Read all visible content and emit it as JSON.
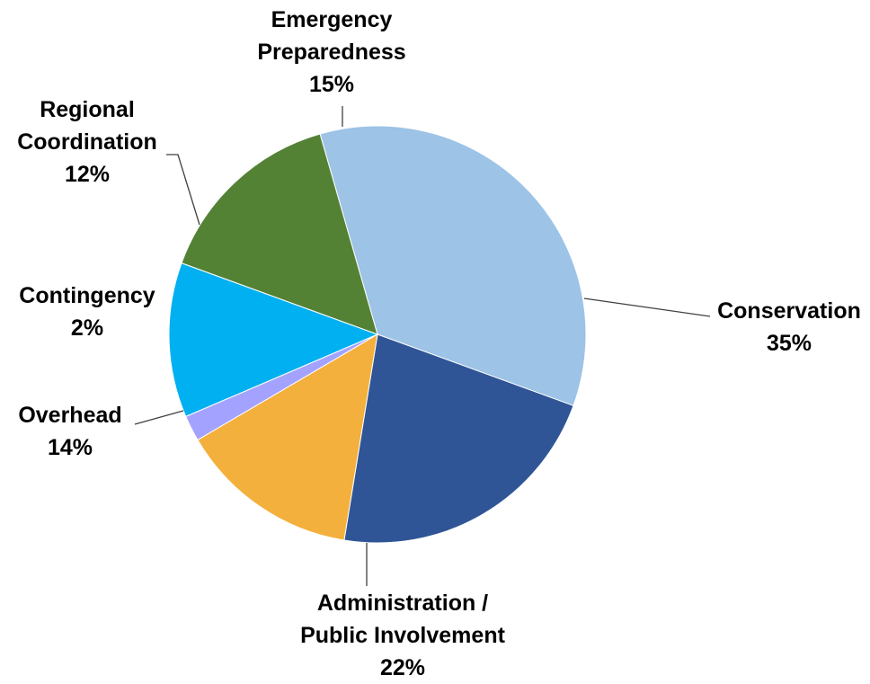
{
  "chart_data": {
    "type": "pie",
    "start_angle_deg": -16,
    "direction": "clockwise",
    "slices": [
      {
        "name": "Conservation",
        "label_lines": [
          "Conservation"
        ],
        "pct_label": "35%",
        "value": 35,
        "color": "#9DC3E6"
      },
      {
        "name": "Administration / Public Involvement",
        "label_lines": [
          "Administration /",
          "Public Involvement"
        ],
        "pct_label": "22%",
        "value": 22,
        "color": "#2F5597"
      },
      {
        "name": "Overhead",
        "label_lines": [
          "Overhead"
        ],
        "pct_label": "14%",
        "value": 14,
        "color": "#F4B03C"
      },
      {
        "name": "Contingency",
        "label_lines": [
          "Contingency"
        ],
        "pct_label": "2%",
        "value": 2,
        "color": "#A3A3FF"
      },
      {
        "name": "Regional Coordination",
        "label_lines": [
          "Regional",
          "Coordination"
        ],
        "pct_label": "12%",
        "value": 12,
        "color": "#00B0F0"
      },
      {
        "name": "Emergency Preparedness",
        "label_lines": [
          "Emergency",
          "Preparedness"
        ],
        "pct_label": "15%",
        "value": 15,
        "color": "#548235"
      }
    ],
    "labels_outside": true,
    "leader_lines": true
  }
}
